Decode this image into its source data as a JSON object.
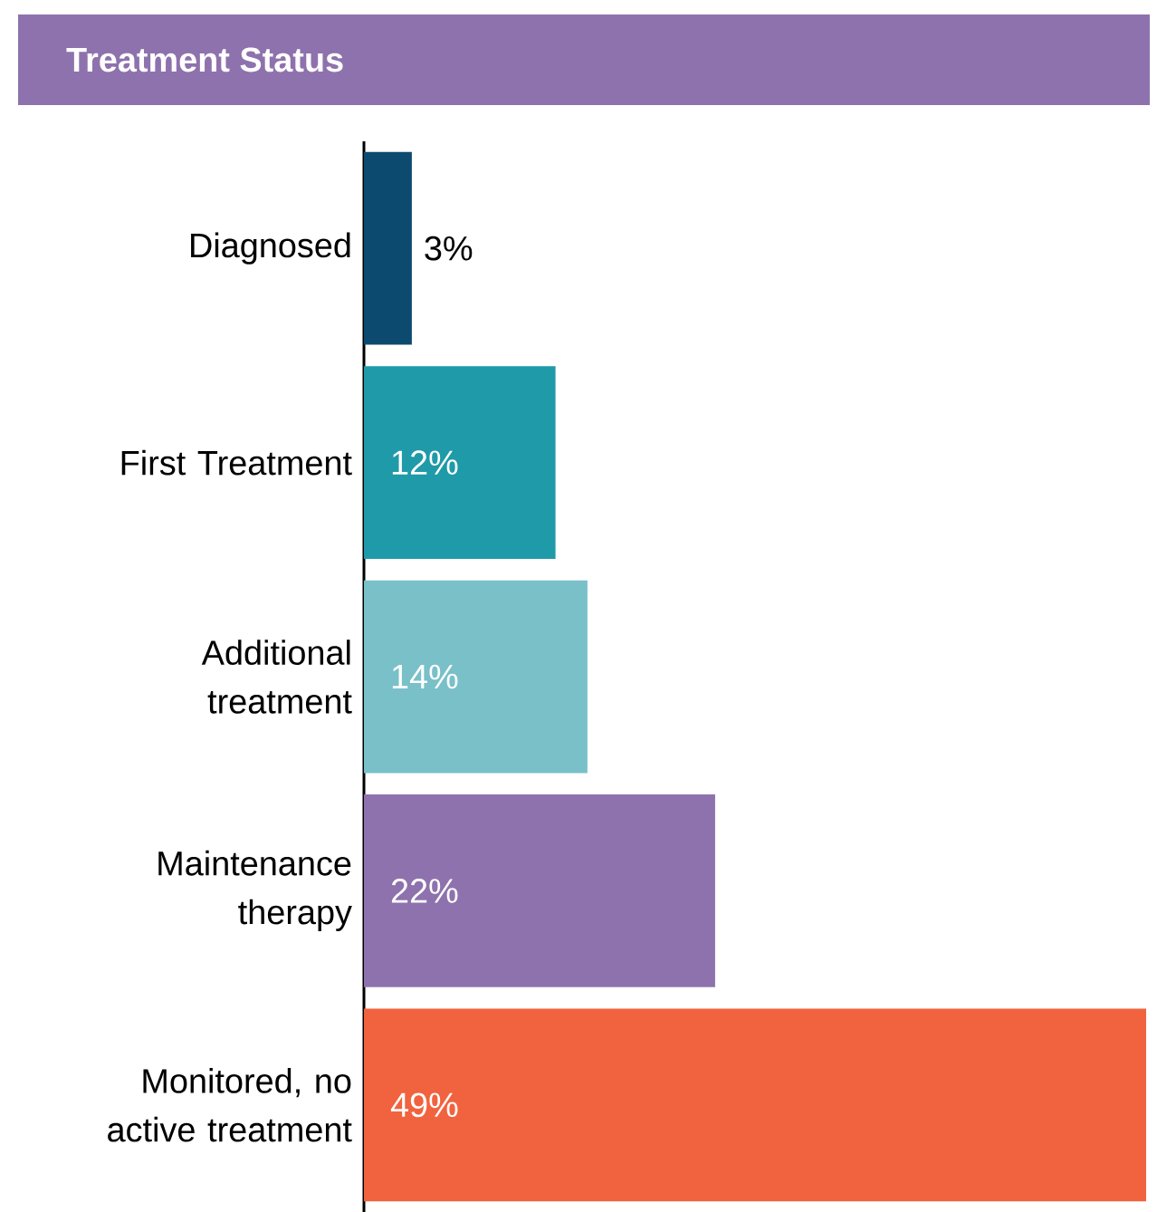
{
  "chart_data": {
    "type": "bar",
    "orientation": "horizontal",
    "title": "Treatment Status",
    "categories": [
      "Diagnosed",
      "First Treatment",
      "Additional treatment",
      "Maintenance therapy",
      "Monitored, no active treatment"
    ],
    "values": [
      3,
      12,
      14,
      22,
      49
    ],
    "colors": [
      "#0d4a70",
      "#1f9aa8",
      "#79c0c9",
      "#8e72ad",
      "#f1633e"
    ],
    "xlim": [
      0,
      49
    ],
    "value_labels": [
      "3%",
      "12%",
      "14%",
      "22%",
      "49%"
    ]
  }
}
